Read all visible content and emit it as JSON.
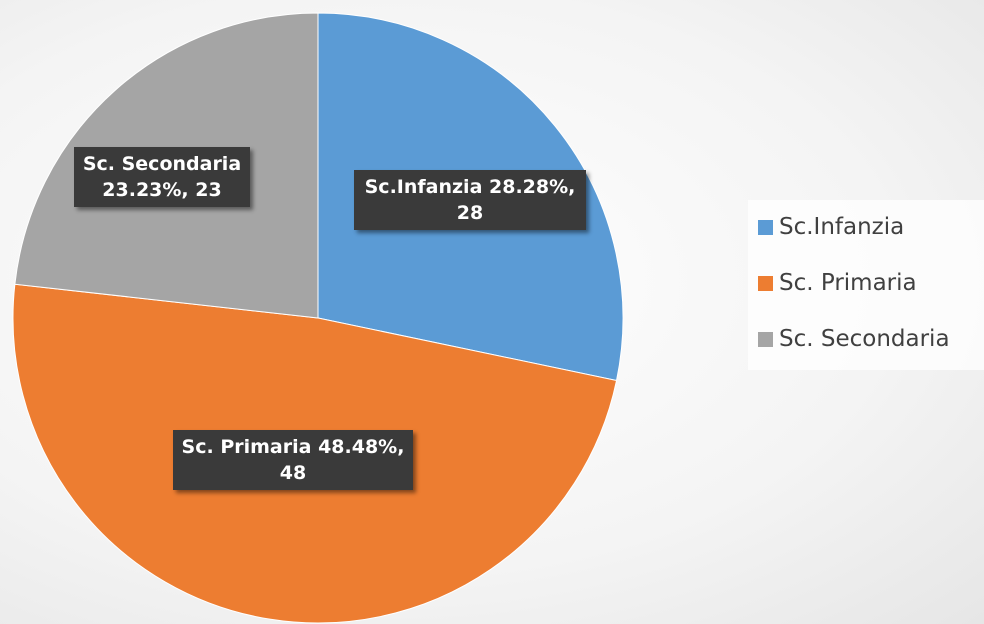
{
  "chart_data": {
    "type": "pie",
    "categories": [
      "Sc.Infanzia",
      "Sc. Primaria",
      "Sc. Secondaria"
    ],
    "values": [
      28,
      48,
      23
    ],
    "value_labels": [
      "Sc.Infanzia 28.28%, 28",
      "Sc. Primaria 48.48%, 48",
      "Sc. Secondaria 23.23%, 23"
    ],
    "colors": [
      "#5b9bd5",
      "#ed7d31",
      "#a5a5a5"
    ],
    "legend": "right"
  }
}
